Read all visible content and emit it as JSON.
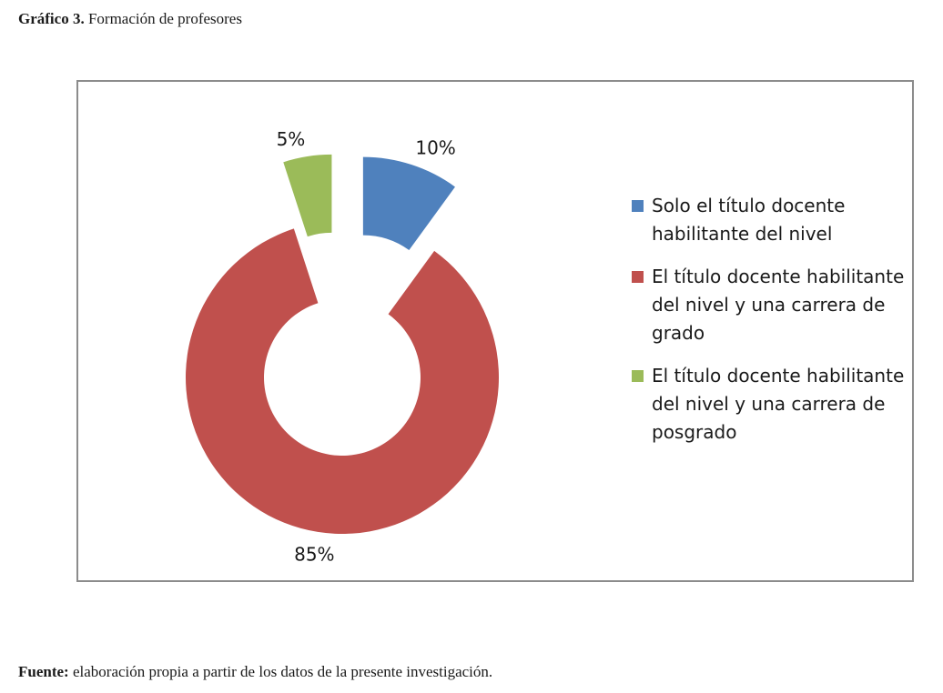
{
  "caption": {
    "label": "Gráfico 3.",
    "text": " Formación de profesores"
  },
  "source": {
    "label": "Fuente:",
    "text": " elaboración propia a partir de los datos de la presente investigación."
  },
  "chart_data": {
    "type": "pie",
    "variant": "doughnut",
    "exploded": true,
    "title": "",
    "legend_position": "right",
    "slices": [
      {
        "label": "Solo el título docente habilitante del nivel",
        "value": 10,
        "value_label": "10%",
        "color": "#4f81bd"
      },
      {
        "label": "El título docente habilitante del nivel y una carrera de grado",
        "value": 85,
        "value_label": "85%",
        "color": "#c0504d"
      },
      {
        "label": "El título docente habilitante del nivel y una carrera de posgrado",
        "value": 5,
        "value_label": "5%",
        "color": "#9bbb59"
      }
    ]
  }
}
